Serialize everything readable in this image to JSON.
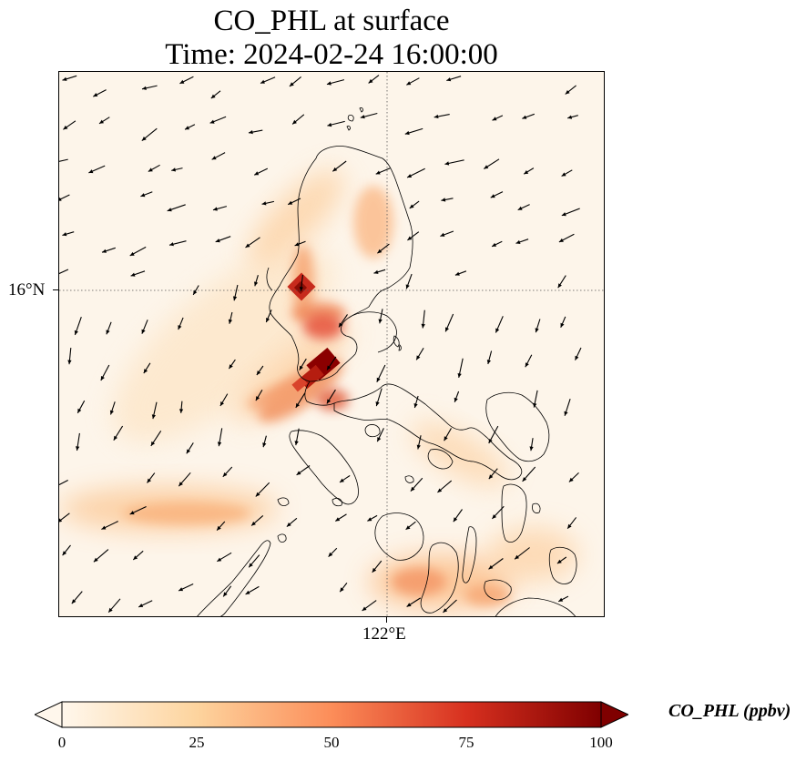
{
  "title": {
    "line1": "CO_PHL at surface",
    "line2": "Time: 2024-02-24 16:00:00"
  },
  "axes": {
    "lat_label": "16°N",
    "lon_label": "122°E",
    "gridlines": "dotted"
  },
  "colorbar": {
    "label": "CO_PHL (ppbv)",
    "ticks": [
      "0",
      "25",
      "50",
      "75",
      "100"
    ],
    "range": [
      0,
      100
    ],
    "extend": "both",
    "colormap": "OrRd",
    "colors": [
      "#fff7ec",
      "#fdd49e",
      "#fc8d59",
      "#d7301f",
      "#7f0000"
    ]
  },
  "map": {
    "background": "#fdf5ea",
    "coastline_color": "#000000",
    "wind_vectors": "shown",
    "plume_color_peak": "#8b0000"
  }
}
